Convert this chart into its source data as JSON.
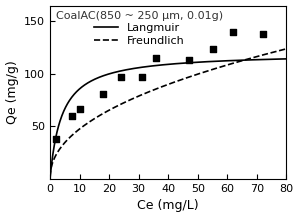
{
  "title": "CoalAC(850 ~ 250 μm, 0.01g)",
  "xlabel": "Ce (mg/L)",
  "ylabel": "Qe (mg/g)",
  "scatter_x": [
    2,
    7.5,
    10,
    18,
    24,
    31,
    36,
    47,
    55,
    62,
    72
  ],
  "scatter_y": [
    38,
    60,
    67,
    81,
    97,
    97,
    115,
    113,
    124,
    140,
    138
  ],
  "xlim": [
    0,
    80
  ],
  "ylim": [
    0,
    165
  ],
  "xticks": [
    0,
    10,
    20,
    30,
    40,
    50,
    60,
    70,
    80
  ],
  "yticks": [
    50,
    100,
    150
  ],
  "langmuir_qmax": 120.0,
  "langmuir_KL": 0.25,
  "freundlich_Kf": 16.5,
  "freundlich_n": 0.46,
  "legend_langmuir": "Langmuir",
  "legend_freundlich": "Freundlich",
  "line_color": "#000000",
  "scatter_color": "#000000",
  "background_color": "#ffffff"
}
